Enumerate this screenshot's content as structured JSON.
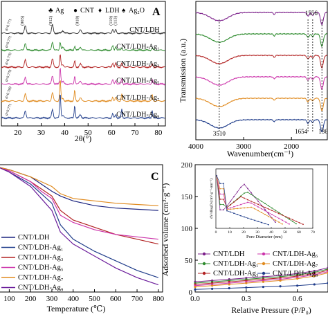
{
  "panelA": {
    "letter": "A",
    "xlabel": "2θ(°)",
    "xticks": [
      "20",
      "30",
      "40",
      "50",
      "60",
      "70",
      "80"
    ],
    "xlim": [
      13,
      83
    ],
    "legend": [
      {
        "symbol": "♣",
        "label": "Ag",
        "color": "#4aa3df"
      },
      {
        "symbol": "●",
        "label": "CNT",
        "color": "#000000"
      },
      {
        "symbol": "♦",
        "label": "LDH",
        "color": "#8a2be2"
      },
      {
        "symbol": "♠",
        "label": "Ag₂O",
        "color": "#e08a1e"
      }
    ],
    "peak_labels": [
      "(003)",
      "(012)",
      "(018)",
      "(110)",
      "(113)"
    ],
    "curves": [
      {
        "name": "CNT/LDH",
        "color": "#333333",
        "d_label": "d=0.771"
      },
      {
        "name": "CNT/LDH-Ag₁",
        "color": "#2e8b2e",
        "d_label": "d=0.771"
      },
      {
        "name": "CNT/LDH-Ag₃",
        "color": "#b22222",
        "d_label": "d=0.770"
      },
      {
        "name": "CNT/LDH-Ag₅",
        "color": "#cc33aa",
        "d_label": "d=0.770"
      },
      {
        "name": "CNT/LDH-Ag₇",
        "color": "#e08a1e",
        "d_label": "d=0.769"
      },
      {
        "name": "CNT/LDH-Ag₉",
        "color": "#1f3c8a",
        "d_label": "d=0.771"
      }
    ]
  },
  "panelB": {
    "xlabel": "Wavenumber(cm⁻¹)",
    "ylabel": "Transmission (a.u.)",
    "xticks": [
      "4000",
      "3000",
      "2000"
    ],
    "xlim": [
      4000,
      1250
    ],
    "annotations": [
      "3510",
      "1654",
      "1556",
      "1363"
    ],
    "curves": [
      {
        "name": "CNT/LDH",
        "color": "#7b1f8a"
      },
      {
        "name": "CNT/LDH-Ag₁",
        "color": "#2e8b2e"
      },
      {
        "name": "CNT/LDH-Ag₃",
        "color": "#b22222"
      },
      {
        "name": "CNT/LDH-Ag₅",
        "color": "#cc33aa"
      },
      {
        "name": "CNT/LDH-Ag₇",
        "color": "#e08a1e"
      },
      {
        "name": "CNT/LDH-Ag₉",
        "color": "#1f3c8a"
      }
    ]
  },
  "panelC": {
    "letter": "C",
    "xlabel": "Temperature  (℃)",
    "xticks": [
      "100",
      "200",
      "300",
      "400",
      "500",
      "600",
      "700",
      "800"
    ],
    "xlim": [
      50,
      820
    ],
    "legend": [
      "CNT/LDH",
      "CNT/LDH-Ag₁",
      "CNT/LDH-Ag₃",
      "CNT/LDH-Ag₅",
      "CNT/LDH-Ag₇",
      "CNT/LDH-Ag₉"
    ],
    "colors": [
      "#1a237e",
      "#1f3c8a",
      "#b22222",
      "#cc33aa",
      "#e08a1e",
      "#6a1b9a"
    ]
  },
  "panelD": {
    "ylabel": "Adsorbed volume (cm³·g⁻¹)",
    "xlabel": "Relative Pressure (P/P₀)",
    "yticks": [
      "0",
      "50",
      "100",
      "150",
      "200"
    ],
    "ylim": [
      0,
      200
    ],
    "xticks": [
      "0.0",
      "0.3",
      "0.6"
    ],
    "xlim": [
      0.0,
      0.78
    ],
    "inset": {
      "xlabel": "Pore Diameter (nm)",
      "xticks": [
        "0",
        "10",
        "20",
        "30",
        "40",
        "50",
        "60",
        "70"
      ],
      "ylabel": "dV/dlogD (cm³·g⁻¹·nm⁻¹)"
    },
    "legend": [
      {
        "label": "CNT/LDH",
        "color": "#7b1f8a"
      },
      {
        "label": "CNT/LDH-Ag₅",
        "color": "#cc33aa"
      },
      {
        "label": "CNT/LDH-Ag₁",
        "color": "#2e8b2e"
      },
      {
        "label": "CNT/LDH-Ag₇",
        "color": "#e08a1e"
      },
      {
        "label": "CNT/LDH-Ag₃",
        "color": "#b22222"
      },
      {
        "label": "CNT/LDH-Ag₉",
        "color": "#1f3c8a"
      }
    ]
  },
  "chart_data": [
    {
      "type": "line",
      "panel": "A",
      "xlabel": "2θ(°)",
      "x": [
        11.5,
        23.2,
        34.8,
        38.1,
        44.3,
        46.5,
        60.5,
        61.9,
        64.4,
        77.4
      ],
      "note_peaks": "LDH (003),(012),(018),(110),(113); Ag peaks near 38.1, 44.3, 64.4, 77.4",
      "series": [
        {
          "name": "CNT/LDH"
        },
        {
          "name": "CNT/LDH-Ag₁"
        },
        {
          "name": "CNT/LDH-Ag₃"
        },
        {
          "name": "CNT/LDH-Ag₅"
        },
        {
          "name": "CNT/LDH-Ag₇"
        },
        {
          "name": "CNT/LDH-Ag₉"
        }
      ]
    },
    {
      "type": "line",
      "panel": "B",
      "xlabel": "Wavenumber(cm⁻¹)",
      "ylabel": "Transmission (a.u.)",
      "peaks": [
        3510,
        1654,
        1556,
        1363
      ],
      "series": [
        {
          "name": "CNT/LDH"
        },
        {
          "name": "CNT/LDH-Ag₁"
        },
        {
          "name": "CNT/LDH-Ag₃"
        },
        {
          "name": "CNT/LDH-Ag₅"
        },
        {
          "name": "CNT/LDH-Ag₇"
        },
        {
          "name": "CNT/LDH-Ag₉"
        }
      ]
    },
    {
      "type": "line",
      "panel": "C",
      "xlabel": "Temperature  (℃)",
      "x": [
        50,
        100,
        200,
        250,
        300,
        340,
        400,
        500,
        600,
        700,
        800
      ],
      "series": [
        {
          "name": "CNT/LDH",
          "values": [
            100,
            99,
            96,
            93,
            90,
            88,
            86,
            84,
            83,
            82.5,
            82
          ]
        },
        {
          "name": "CNT/LDH-Ag₁",
          "values": [
            100,
            98,
            93,
            89,
            85,
            76,
            70,
            65,
            61,
            57,
            54
          ]
        },
        {
          "name": "CNT/LDH-Ag₃",
          "values": [
            100,
            98.5,
            94,
            91,
            88,
            82,
            78,
            75,
            72,
            70,
            68
          ]
        },
        {
          "name": "CNT/LDH-Ag₅",
          "values": [
            100,
            98.5,
            94,
            90,
            87,
            80,
            77,
            74,
            72,
            71,
            70
          ]
        },
        {
          "name": "CNT/LDH-Ag₇",
          "values": [
            100,
            99,
            96,
            94,
            92,
            89,
            87,
            86,
            85,
            84.5,
            84
          ]
        },
        {
          "name": "CNT/LDH-Ag₉",
          "values": [
            100,
            98,
            92,
            87,
            82,
            73,
            68,
            63,
            58,
            54,
            51
          ]
        }
      ]
    },
    {
      "type": "line",
      "panel": "D",
      "xlabel": "Relative Pressure (P/P₀)",
      "ylabel": "Adsorbed volume (cm³·g⁻¹)",
      "x": [
        0.0,
        0.1,
        0.2,
        0.3,
        0.4,
        0.5,
        0.6,
        0.7,
        0.78
      ],
      "series": [
        {
          "name": "CNT/LDH",
          "values": [
            16,
            18,
            20,
            22,
            24,
            26,
            29,
            33,
            38
          ]
        },
        {
          "name": "CNT/LDH-Ag₁",
          "values": [
            14,
            16,
            18,
            20,
            22,
            24,
            27,
            31,
            36
          ]
        },
        {
          "name": "CNT/LDH-Ag₃",
          "values": [
            12,
            14,
            16,
            18,
            20,
            22,
            25,
            29,
            34
          ]
        },
        {
          "name": "CNT/LDH-Ag₅",
          "values": [
            10,
            12,
            14,
            16,
            18,
            20,
            23,
            27,
            32
          ]
        },
        {
          "name": "CNT/LDH-Ag₇",
          "values": [
            8,
            10,
            12,
            14,
            16,
            18,
            21,
            25,
            30
          ]
        },
        {
          "name": "CNT/LDH-Ag₉",
          "values": [
            4,
            5,
            6,
            7,
            8,
            9,
            10,
            12,
            14
          ]
        }
      ]
    }
  ]
}
